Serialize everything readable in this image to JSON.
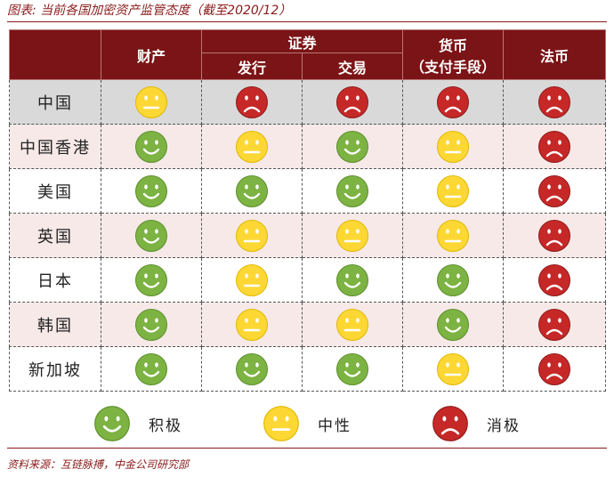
{
  "title": "图表: 当前各国加密资产监管态度（截至2020/12）",
  "source": "资料来源：互链脉搏，中金公司研究部",
  "colors": {
    "positive": "#7cb342",
    "neutral": "#fdd835",
    "negative": "#c62828",
    "header_bg": "#7b1416",
    "alt_row": "#f6e9e8",
    "china_row": "#d9d9d9"
  },
  "headers": {
    "assets": "财产",
    "securities": "证券",
    "securities_issue": "发行",
    "securities_trade": "交易",
    "currency_line1": "货币",
    "currency_line2": "（支付手段）",
    "legal_tender": "法币"
  },
  "rows": [
    {
      "country": "中国",
      "attitudes": [
        "neutral",
        "negative",
        "negative",
        "negative",
        "negative"
      ]
    },
    {
      "country": "中国香港",
      "attitudes": [
        "positive",
        "neutral",
        "positive",
        "neutral",
        "negative"
      ]
    },
    {
      "country": "美国",
      "attitudes": [
        "positive",
        "positive",
        "positive",
        "neutral",
        "negative"
      ]
    },
    {
      "country": "英国",
      "attitudes": [
        "positive",
        "neutral",
        "neutral",
        "neutral",
        "negative"
      ]
    },
    {
      "country": "日本",
      "attitudes": [
        "positive",
        "neutral",
        "positive",
        "positive",
        "negative"
      ]
    },
    {
      "country": "韩国",
      "attitudes": [
        "positive",
        "neutral",
        "neutral",
        "positive",
        "negative"
      ]
    },
    {
      "country": "新加坡",
      "attitudes": [
        "positive",
        "positive",
        "positive",
        "neutral",
        "negative"
      ]
    }
  ],
  "legend": [
    {
      "icon": "positive",
      "label": "积极"
    },
    {
      "icon": "neutral",
      "label": "中性"
    },
    {
      "icon": "negative",
      "label": "消极"
    }
  ]
}
